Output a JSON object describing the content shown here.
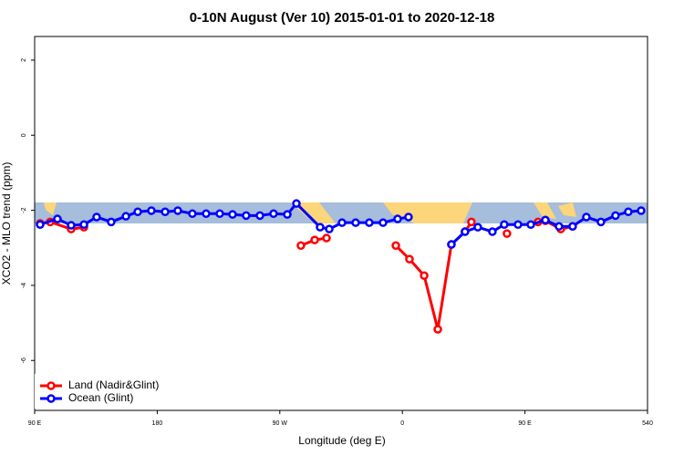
{
  "chart_data": {
    "type": "line",
    "title": "0-10N August (Ver 10)   2015-01-01 to 2020-12-18",
    "xlabel": "Longitude (deg E)",
    "ylabel": "XCO2 - MLO trend (ppm)",
    "xlim": [
      90,
      540
    ],
    "ylim": [
      -7.33,
      2.63
    ],
    "xticks": [
      {
        "value": 90,
        "label": "90 E"
      },
      180,
      {
        "value": 270,
        "label": "90 W"
      },
      {
        "value": 360,
        "label": "0"
      },
      {
        "value": 450,
        "label": "90 E"
      },
      540
    ],
    "yticks": [
      -6,
      -4,
      -2,
      0,
      2
    ],
    "legend": "bottom-left",
    "series": [
      {
        "name": "Land (Nadir&Glint)",
        "color": "#ff0000",
        "x": [
          94,
          101.4,
          116.8,
          126.2,
          null,
          285.5,
          295.6,
          304.3,
          null,
          355.2,
          365.2,
          376,
          386,
          396,
          406,
          410.7,
          null,
          436.8,
          null,
          459.6,
          465,
          476.3,
          485
        ],
        "values": [
          -2.35,
          -2.31,
          -2.5,
          -2.45,
          null,
          -2.94,
          -2.79,
          -2.74,
          null,
          -2.94,
          -3.3,
          -3.74,
          -5.17,
          -2.91,
          -2.57,
          -2.31,
          null,
          -2.62,
          null,
          -2.31,
          -2.28,
          -2.5,
          -2.43
        ]
      },
      {
        "name": "Ocean (Glint)",
        "color": "#0000ff",
        "x": [
          94,
          106.7,
          116.8,
          126.2,
          135.5,
          146.2,
          157,
          165.7,
          175.7,
          185.8,
          195.1,
          205.8,
          215.9,
          225.9,
          235.3,
          245.3,
          255.4,
          265.4,
          275.5,
          282.2,
          299.6,
          306.3,
          315.7,
          325.7,
          335.7,
          345.8,
          356.5,
          364.5,
          null,
          396,
          406,
          415.4,
          426.1,
          434.8,
          444.9,
          454.3,
          465,
          475,
          485,
          495.1,
          505.8,
          516.5,
          525.9,
          535.3
        ],
        "values": [
          -2.38,
          -2.23,
          -2.4,
          -2.38,
          -2.18,
          -2.31,
          -2.16,
          -2.04,
          -2.01,
          -2.04,
          -2.01,
          -2.09,
          -2.09,
          -2.09,
          -2.11,
          -2.14,
          -2.14,
          -2.09,
          -2.11,
          -1.82,
          -2.45,
          -2.5,
          -2.33,
          -2.33,
          -2.33,
          -2.33,
          -2.23,
          -2.18,
          null,
          -2.91,
          -2.57,
          -2.45,
          -2.57,
          -2.38,
          -2.38,
          -2.38,
          -2.26,
          -2.43,
          -2.43,
          -2.18,
          -2.31,
          -2.14,
          -2.04,
          -2.01
        ]
      }
    ]
  }
}
